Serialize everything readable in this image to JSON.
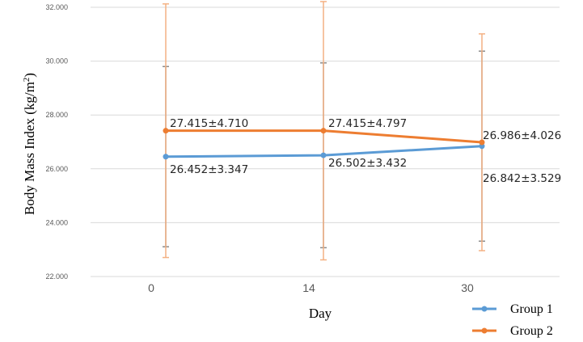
{
  "chart_data": {
    "type": "line",
    "title": "",
    "xlabel": "Day",
    "ylabel": "Body Mass Index (kg/m²)",
    "ylabel_main": "Body Mass Index (kg/m",
    "ylabel_sup": "2",
    "ylabel_tail": ")",
    "ylim": [
      22,
      32
    ],
    "yticks": [
      "22.000",
      "24.000",
      "26.000",
      "28.000",
      "30.000",
      "32.000"
    ],
    "yticks_values": [
      22,
      24,
      26,
      28,
      30,
      32
    ],
    "categories": [
      "0",
      "14",
      "30"
    ],
    "grid": true,
    "legend": "bottom-right",
    "series": [
      {
        "name": "Group 1",
        "color": "#5b9bd5",
        "errorbar_color": "#8c8c8c",
        "values": [
          26.452,
          26.502,
          26.842
        ],
        "sd": [
          3.347,
          3.432,
          3.529
        ],
        "labels": [
          "26.452±3.347",
          "26.502±3.432",
          "26.842±3.529"
        ]
      },
      {
        "name": "Group 2",
        "color": "#ed7d31",
        "errorbar_color": "#f4b183",
        "values": [
          27.415,
          27.415,
          26.986
        ],
        "sd": [
          4.71,
          4.797,
          4.026
        ],
        "labels": [
          "27.415±4.710",
          "27.415±4.797",
          "26.986±4.026"
        ]
      }
    ]
  }
}
